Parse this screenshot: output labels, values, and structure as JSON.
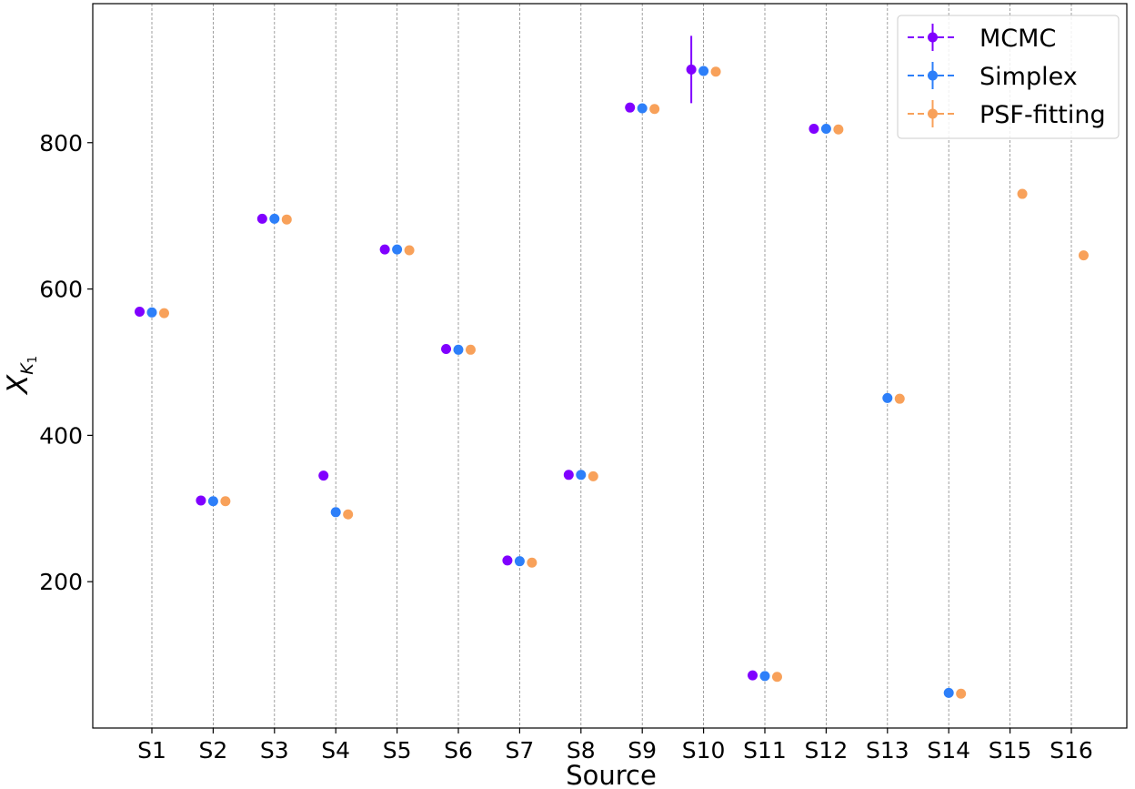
{
  "chart_data": {
    "type": "scatter",
    "xlabel": "Source",
    "ylabel_base": "X",
    "ylabel_sub": "K",
    "ylabel_subsub": "1",
    "ylim": [
      0,
      990
    ],
    "yticks": [
      200,
      400,
      600,
      800
    ],
    "yticks_labels": [
      "200",
      "400",
      "600",
      "800"
    ],
    "categories": [
      "S1",
      "S2",
      "S3",
      "S4",
      "S5",
      "S6",
      "S7",
      "S8",
      "S9",
      "S10",
      "S11",
      "S12",
      "S13",
      "S14",
      "S15",
      "S16"
    ],
    "grid": "vertical dashed gray lines at each category",
    "legend_position": "top-right",
    "series": [
      {
        "name": "MCMC",
        "color": "#8000ff",
        "offset": -0.2,
        "values": [
          569,
          311,
          696,
          345,
          654,
          518,
          229,
          346,
          848,
          900,
          72,
          819,
          null,
          null,
          null,
          null
        ],
        "errors": [
          0,
          0,
          0,
          0,
          0,
          0,
          0,
          0,
          0,
          46,
          0,
          0,
          0,
          0,
          0,
          0
        ]
      },
      {
        "name": "Simplex",
        "color": "#2d7ff9",
        "offset": 0.0,
        "values": [
          568,
          310,
          696,
          295,
          654,
          517,
          228,
          346,
          847,
          898,
          71,
          819,
          451,
          48,
          null,
          null
        ],
        "errors": [
          0,
          0,
          0,
          0,
          0,
          0,
          0,
          0,
          0,
          0,
          0,
          0,
          0,
          0,
          0,
          0
        ]
      },
      {
        "name": "PSF-fitting",
        "color": "#f8a15a",
        "offset": 0.2,
        "values": [
          567,
          310,
          695,
          292,
          653,
          517,
          226,
          344,
          846,
          897,
          70,
          818,
          450,
          47,
          730,
          646
        ],
        "errors": [
          0,
          0,
          0,
          0,
          0,
          0,
          0,
          0,
          0,
          0,
          0,
          0,
          0,
          0,
          0,
          0
        ]
      }
    ]
  }
}
